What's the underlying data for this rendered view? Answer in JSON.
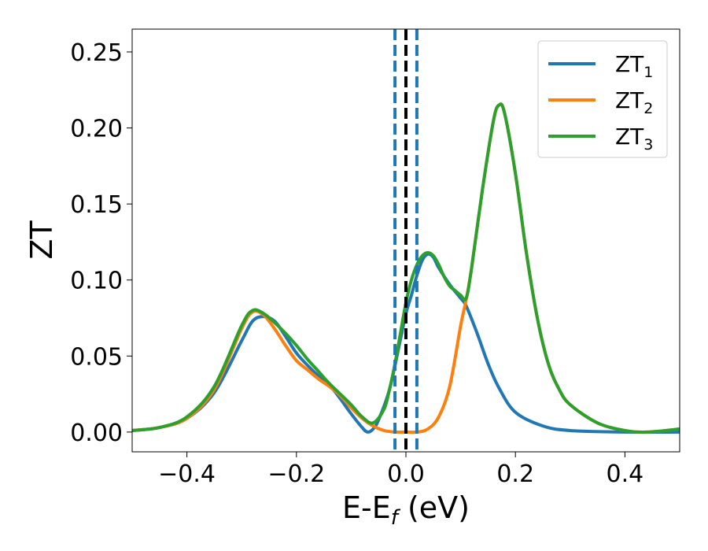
{
  "chart_data": {
    "type": "line",
    "title": "",
    "xlabel": {
      "main": "E-E",
      "sub": "f",
      "unit": " (eV)"
    },
    "ylabel": "ZT",
    "xlim": [
      -0.5,
      0.5
    ],
    "ylim": [
      -0.013,
      0.265
    ],
    "x_ticks": [
      -0.4,
      -0.2,
      0.0,
      0.2,
      0.4
    ],
    "x_tick_labels": [
      "−0.4",
      "−0.2",
      "0.0",
      "0.2",
      "0.4"
    ],
    "y_ticks": [
      0.0,
      0.05,
      0.1,
      0.15,
      0.2,
      0.25
    ],
    "y_tick_labels": [
      "0.00",
      "0.05",
      "0.10",
      "0.15",
      "0.20",
      "0.25"
    ],
    "grid": false,
    "legend_position": "top-right",
    "vertical_lines": [
      {
        "x": -0.02,
        "style": "dashed",
        "color": "#1f77b4"
      },
      {
        "x": 0.0,
        "style": "dashed",
        "color": "#000000"
      },
      {
        "x": 0.02,
        "style": "dashed",
        "color": "#1f77b4"
      }
    ],
    "series": [
      {
        "name": "ZT",
        "sub": "1",
        "color": "#1f77b4",
        "points": [
          [
            -0.5,
            0.001
          ],
          [
            -0.45,
            0.003
          ],
          [
            -0.4,
            0.009
          ],
          [
            -0.35,
            0.026
          ],
          [
            -0.3,
            0.06
          ],
          [
            -0.28,
            0.073
          ],
          [
            -0.26,
            0.076
          ],
          [
            -0.24,
            0.073
          ],
          [
            -0.22,
            0.063
          ],
          [
            -0.2,
            0.052
          ],
          [
            -0.18,
            0.044
          ],
          [
            -0.16,
            0.037
          ],
          [
            -0.14,
            0.031
          ],
          [
            -0.12,
            0.022
          ],
          [
            -0.1,
            0.012
          ],
          [
            -0.08,
            0.003
          ],
          [
            -0.07,
            0.0
          ],
          [
            -0.06,
            0.002
          ],
          [
            -0.05,
            0.008
          ],
          [
            -0.03,
            0.028
          ],
          [
            -0.01,
            0.061
          ],
          [
            0.0,
            0.078
          ],
          [
            0.01,
            0.09
          ],
          [
            0.02,
            0.103
          ],
          [
            0.03,
            0.113
          ],
          [
            0.04,
            0.117
          ],
          [
            0.05,
            0.115
          ],
          [
            0.06,
            0.108
          ],
          [
            0.08,
            0.097
          ],
          [
            0.1,
            0.088
          ],
          [
            0.11,
            0.083
          ],
          [
            0.13,
            0.065
          ],
          [
            0.15,
            0.045
          ],
          [
            0.17,
            0.029
          ],
          [
            0.2,
            0.013
          ],
          [
            0.25,
            0.004
          ],
          [
            0.3,
            0.001
          ],
          [
            0.4,
            0.0
          ],
          [
            0.5,
            0.0
          ]
        ]
      },
      {
        "name": "ZT",
        "sub": "2",
        "color": "#ff7f0e",
        "points": [
          [
            -0.5,
            0.001
          ],
          [
            -0.45,
            0.003
          ],
          [
            -0.4,
            0.009
          ],
          [
            -0.35,
            0.028
          ],
          [
            -0.3,
            0.068
          ],
          [
            -0.28,
            0.079
          ],
          [
            -0.26,
            0.077
          ],
          [
            -0.24,
            0.068
          ],
          [
            -0.22,
            0.057
          ],
          [
            -0.2,
            0.047
          ],
          [
            -0.18,
            0.041
          ],
          [
            -0.16,
            0.035
          ],
          [
            -0.14,
            0.03
          ],
          [
            -0.12,
            0.024
          ],
          [
            -0.1,
            0.016
          ],
          [
            -0.08,
            0.009
          ],
          [
            -0.06,
            0.004
          ],
          [
            -0.04,
            0.001
          ],
          [
            -0.02,
            0.0
          ],
          [
            0.0,
            0.0
          ],
          [
            0.02,
            0.0
          ],
          [
            0.04,
            0.002
          ],
          [
            0.06,
            0.01
          ],
          [
            0.08,
            0.03
          ],
          [
            0.1,
            0.07
          ],
          [
            0.11,
            0.087
          ],
          [
            0.12,
            0.108
          ],
          [
            0.14,
            0.16
          ],
          [
            0.16,
            0.205
          ],
          [
            0.17,
            0.215
          ],
          [
            0.18,
            0.21
          ],
          [
            0.2,
            0.17
          ],
          [
            0.22,
            0.118
          ],
          [
            0.24,
            0.075
          ],
          [
            0.26,
            0.045
          ],
          [
            0.28,
            0.028
          ],
          [
            0.3,
            0.018
          ],
          [
            0.35,
            0.006
          ],
          [
            0.4,
            0.001
          ],
          [
            0.44,
            0.0
          ],
          [
            0.5,
            0.002
          ]
        ]
      },
      {
        "name": "ZT",
        "sub": "3",
        "color": "#2ca02c",
        "points": [
          [
            -0.5,
            0.001
          ],
          [
            -0.45,
            0.003
          ],
          [
            -0.4,
            0.01
          ],
          [
            -0.35,
            0.03
          ],
          [
            -0.3,
            0.07
          ],
          [
            -0.28,
            0.08
          ],
          [
            -0.26,
            0.078
          ],
          [
            -0.24,
            0.072
          ],
          [
            -0.22,
            0.065
          ],
          [
            -0.2,
            0.057
          ],
          [
            -0.18,
            0.048
          ],
          [
            -0.16,
            0.04
          ],
          [
            -0.14,
            0.032
          ],
          [
            -0.12,
            0.025
          ],
          [
            -0.1,
            0.018
          ],
          [
            -0.08,
            0.01
          ],
          [
            -0.06,
            0.006
          ],
          [
            -0.04,
            0.015
          ],
          [
            -0.03,
            0.028
          ],
          [
            -0.02,
            0.045
          ],
          [
            -0.01,
            0.065
          ],
          [
            0.0,
            0.085
          ],
          [
            0.01,
            0.1
          ],
          [
            0.02,
            0.11
          ],
          [
            0.03,
            0.116
          ],
          [
            0.04,
            0.118
          ],
          [
            0.05,
            0.116
          ],
          [
            0.06,
            0.11
          ],
          [
            0.07,
            0.102
          ],
          [
            0.08,
            0.096
          ],
          [
            0.09,
            0.093
          ],
          [
            0.1,
            0.09
          ],
          [
            0.11,
            0.088
          ],
          [
            0.12,
            0.108
          ],
          [
            0.14,
            0.16
          ],
          [
            0.16,
            0.205
          ],
          [
            0.17,
            0.215
          ],
          [
            0.18,
            0.21
          ],
          [
            0.2,
            0.17
          ],
          [
            0.22,
            0.118
          ],
          [
            0.24,
            0.075
          ],
          [
            0.26,
            0.045
          ],
          [
            0.28,
            0.028
          ],
          [
            0.3,
            0.018
          ],
          [
            0.35,
            0.006
          ],
          [
            0.4,
            0.001
          ],
          [
            0.44,
            0.0
          ],
          [
            0.5,
            0.002
          ]
        ]
      }
    ]
  }
}
